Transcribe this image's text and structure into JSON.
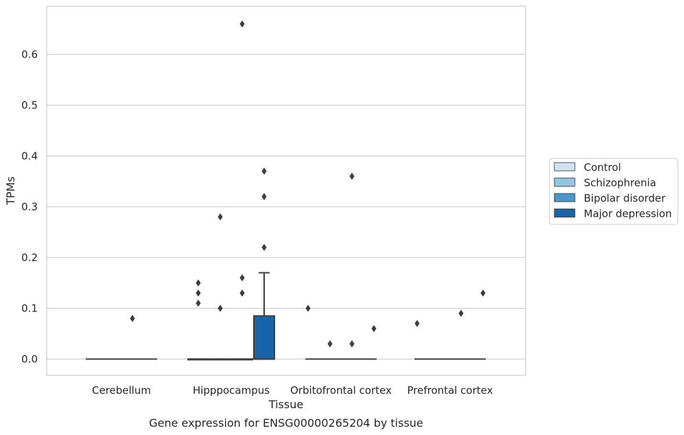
{
  "chart_data": {
    "type": "box",
    "caption": "Gene expression for ENSG00000265204 by tissue",
    "xlabel": "Tissue",
    "ylabel": "TPMs",
    "ylim": [
      -0.032,
      0.695
    ],
    "yticks": [
      "0.0",
      "0.1",
      "0.2",
      "0.3",
      "0.4",
      "0.5",
      "0.6"
    ],
    "grid": true,
    "legend_position": "right",
    "categories": [
      "Cerebellum",
      "Hipppocampus",
      "Orbitofrontal cortex",
      "Prefrontal cortex"
    ],
    "series": [
      {
        "name": "Control",
        "color": "#d0e1f2"
      },
      {
        "name": "Schizophrenia",
        "color": "#94c4df"
      },
      {
        "name": "Bipolar disorder",
        "color": "#4a98c9"
      },
      {
        "name": "Major depression",
        "color": "#1764ab"
      }
    ],
    "boxes": [
      {
        "category": "Cerebellum",
        "q1": 0,
        "median": 0,
        "q3": 0,
        "whisker_low": 0,
        "whisker_high": 0,
        "outliers": [
          {
            "series": "Bipolar disorder",
            "y": 0.08
          }
        ]
      },
      {
        "category": "Hipppocampus",
        "series": "Control",
        "q1": 0,
        "median": 0,
        "q3": 0,
        "whisker_low": 0,
        "whisker_high": 0,
        "outliers": [
          {
            "series": "Control",
            "y": 0.15
          },
          {
            "series": "Control",
            "y": 0.13
          },
          {
            "series": "Control",
            "y": 0.11
          }
        ]
      },
      {
        "category": "Hipppocampus",
        "series": "Schizophrenia",
        "q1": 0,
        "median": 0,
        "q3": 0,
        "whisker_low": 0,
        "whisker_high": 0,
        "outliers": [
          {
            "series": "Schizophrenia",
            "y": 0.28
          },
          {
            "series": "Schizophrenia",
            "y": 0.1
          }
        ]
      },
      {
        "category": "Hipppocampus",
        "series": "Bipolar disorder",
        "q1": 0,
        "median": 0,
        "q3": 0,
        "whisker_low": 0,
        "whisker_high": 0,
        "outliers": [
          {
            "series": "Bipolar disorder",
            "y": 0.66
          },
          {
            "series": "Bipolar disorder",
            "y": 0.16
          },
          {
            "series": "Bipolar disorder",
            "y": 0.13
          }
        ]
      },
      {
        "category": "Hipppocampus",
        "series": "Major depression",
        "q1": 0,
        "median": 0,
        "q3": 0.085,
        "whisker_low": 0,
        "whisker_high": 0.17,
        "outliers": [
          {
            "series": "Major depression",
            "y": 0.37
          },
          {
            "series": "Major depression",
            "y": 0.32
          },
          {
            "series": "Major depression",
            "y": 0.22
          }
        ]
      },
      {
        "category": "Orbitofrontal cortex",
        "q1": 0,
        "median": 0,
        "q3": 0,
        "whisker_low": 0,
        "whisker_high": 0,
        "outliers": [
          {
            "series": "Control",
            "y": 0.1
          },
          {
            "series": "Schizophrenia",
            "y": 0.03
          },
          {
            "series": "Bipolar disorder",
            "y": 0.03
          },
          {
            "series": "Bipolar disorder",
            "y": 0.36
          },
          {
            "series": "Major depression",
            "y": 0.06
          }
        ]
      },
      {
        "category": "Prefrontal cortex",
        "q1": 0,
        "median": 0,
        "q3": 0,
        "whisker_low": 0,
        "whisker_high": 0,
        "outliers": [
          {
            "series": "Control",
            "y": 0.07
          },
          {
            "series": "Bipolar disorder",
            "y": 0.09
          },
          {
            "series": "Major depression",
            "y": 0.13
          }
        ]
      }
    ]
  }
}
